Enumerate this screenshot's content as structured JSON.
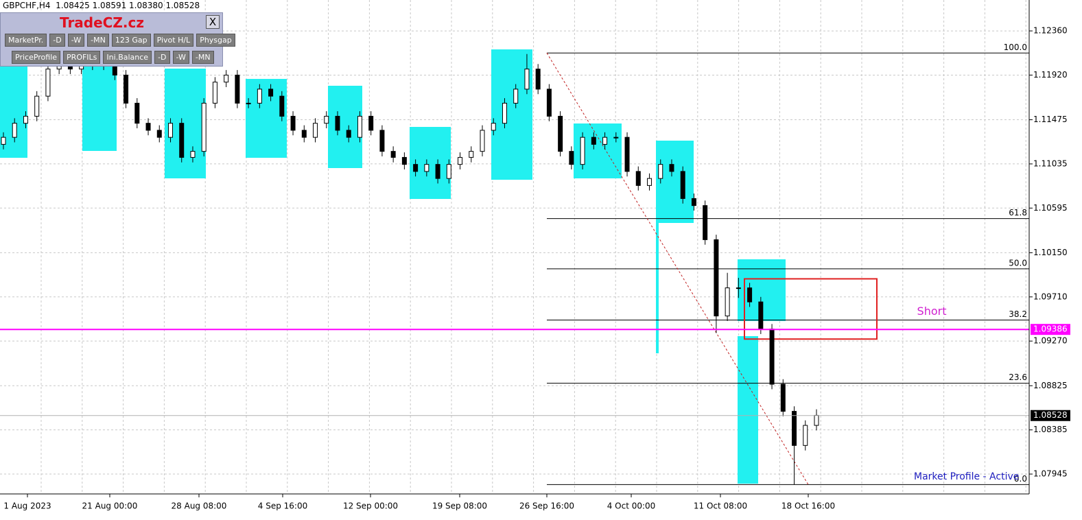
{
  "header": {
    "text": "GBPCHF,H4  1.08425 1.08591 1.08380 1.08528"
  },
  "panel": {
    "title": "TradeCZ.cz",
    "close": "X",
    "row1": [
      "MarketPr.",
      "-D",
      "-W",
      "-MN",
      "123 Gap",
      "Pivot H/L",
      "Physgap"
    ],
    "row2": [
      "PriceProfile",
      "PROFILs",
      "Ini.Balance",
      "-D",
      "-W",
      "-MN"
    ]
  },
  "status": "Market Profile - Active",
  "chart_data": {
    "type": "candlestick",
    "x_labels": [
      "1 Aug 2023",
      "21 Aug 00:00",
      "28 Aug 08:00",
      "4 Sep 16:00",
      "12 Sep 00:00",
      "19 Sep 08:00",
      "26 Sep 16:00",
      "4 Oct 00:00",
      "11 Oct 08:00",
      "18 Oct 16:00"
    ],
    "open": [
      1.1123,
      1.113,
      1.1144,
      1.1151,
      1.1171,
      1.1198,
      1.1202,
      1.1198,
      1.1205,
      1.1202,
      1.1205,
      1.1192,
      1.1164,
      1.1144,
      1.1137,
      1.113,
      1.1144,
      1.111,
      1.1116,
      1.1164,
      1.1185,
      1.1192,
      1.1164,
      1.1164,
      1.1178,
      1.1171,
      1.1151,
      1.1137,
      1.113,
      1.1144,
      1.1151,
      1.1137,
      1.113,
      1.1151,
      1.1137,
      1.1116,
      1.111,
      1.1103,
      1.1096,
      1.1103,
      1.1089,
      1.1103,
      1.111,
      1.1116,
      1.1137,
      1.1144,
      1.1164,
      1.1178,
      1.1198,
      1.1178,
      1.1151,
      1.1116,
      1.1103,
      1.113,
      1.1123,
      1.113,
      1.113,
      1.1096,
      1.1082,
      1.1089,
      1.1103,
      1.1096,
      1.1069,
      1.1062,
      1.1028,
      1.0952,
      1.098,
      1.098,
      1.0966,
      1.0939,
      1.0884,
      1.0857,
      1.0823,
      1.0843
    ],
    "high": [
      1.1135,
      1.1149,
      1.1156,
      1.1176,
      1.1203,
      1.1207,
      1.1207,
      1.121,
      1.121,
      1.121,
      1.121,
      1.1197,
      1.1169,
      1.1149,
      1.1142,
      1.1149,
      1.1149,
      1.1121,
      1.1169,
      1.119,
      1.1197,
      1.1197,
      1.1169,
      1.1183,
      1.1183,
      1.1176,
      1.1156,
      1.1142,
      1.1149,
      1.1156,
      1.1156,
      1.1142,
      1.1156,
      1.1156,
      1.1142,
      1.1121,
      1.1115,
      1.1108,
      1.1108,
      1.1108,
      1.1108,
      1.1115,
      1.1121,
      1.1142,
      1.1149,
      1.1169,
      1.1183,
      1.1213,
      1.1203,
      1.1183,
      1.1156,
      1.1121,
      1.1135,
      1.1135,
      1.1135,
      1.1135,
      1.1135,
      1.1101,
      1.1094,
      1.1108,
      1.1108,
      1.1101,
      1.1074,
      1.1067,
      1.1033,
      1.0995,
      1.099,
      1.0985,
      1.0971,
      1.0944,
      1.0889,
      1.0862,
      1.0848,
      1.0859
    ],
    "low": [
      1.1118,
      1.1125,
      1.1139,
      1.1146,
      1.1166,
      1.1193,
      1.1193,
      1.1193,
      1.1197,
      1.1197,
      1.1187,
      1.1159,
      1.1139,
      1.1132,
      1.1125,
      1.1125,
      1.1105,
      1.1105,
      1.1111,
      1.1159,
      1.118,
      1.1159,
      1.1159,
      1.1159,
      1.1166,
      1.1146,
      1.1132,
      1.1125,
      1.1125,
      1.1139,
      1.1132,
      1.1125,
      1.1125,
      1.1132,
      1.1111,
      1.1105,
      1.1098,
      1.1091,
      1.1091,
      1.1084,
      1.1084,
      1.1098,
      1.1105,
      1.1111,
      1.1132,
      1.1139,
      1.1159,
      1.1173,
      1.1173,
      1.1146,
      1.1111,
      1.1098,
      1.1098,
      1.1118,
      1.1118,
      1.1125,
      1.1091,
      1.1077,
      1.1077,
      1.1084,
      1.1091,
      1.1064,
      1.1057,
      1.1023,
      1.0935,
      1.0947,
      1.097,
      1.0961,
      1.0934,
      1.0879,
      1.0852,
      1.0784,
      1.0818,
      1.0838
    ],
    "close": [
      1.113,
      1.1144,
      1.1151,
      1.1171,
      1.1198,
      1.1202,
      1.1198,
      1.1205,
      1.1202,
      1.1205,
      1.1192,
      1.1164,
      1.1144,
      1.1137,
      1.113,
      1.1144,
      1.111,
      1.1116,
      1.1164,
      1.1185,
      1.1192,
      1.1164,
      1.1164,
      1.1178,
      1.1171,
      1.1151,
      1.1137,
      1.113,
      1.1144,
      1.1151,
      1.1137,
      1.113,
      1.1151,
      1.1137,
      1.1116,
      1.111,
      1.1103,
      1.1096,
      1.1103,
      1.1089,
      1.1103,
      1.111,
      1.1116,
      1.1137,
      1.1144,
      1.1164,
      1.1178,
      1.1198,
      1.1178,
      1.1151,
      1.1116,
      1.1103,
      1.113,
      1.1123,
      1.113,
      1.113,
      1.1096,
      1.1082,
      1.1089,
      1.1103,
      1.1096,
      1.1069,
      1.1062,
      1.1028,
      1.0952,
      1.098,
      1.098,
      1.0966,
      1.0939,
      1.0884,
      1.0857,
      1.0823,
      1.0843,
      1.0853
    ],
    "ylim": [
      1.07747,
      1.12668
    ],
    "yticks": [
      {
        "value": 1.1236,
        "label": "1.12360"
      },
      {
        "value": 1.1192,
        "label": "1.11920"
      },
      1.11475,
      1.11035,
      1.10595,
      {
        "value": 1.1015,
        "label": "1.10150"
      },
      {
        "value": 1.0971,
        "label": "1.09710"
      },
      {
        "value": 1.0927,
        "label": "1.09270"
      },
      1.08825,
      1.08385,
      1.07945
    ],
    "grid": true,
    "fib_levels": [
      {
        "label": "100.0",
        "price": 1.1214
      },
      {
        "label": "61.8",
        "price": 1.1049
      },
      {
        "label": "50.0",
        "price": 1.0999
      },
      {
        "label": "38.2",
        "price": 1.0948
      },
      {
        "label": "23.6",
        "price": 1.0885
      },
      {
        "label": "0.0",
        "price": 1.0784
      }
    ],
    "level_line": {
      "price": 1.09386,
      "color": "#ff00ff"
    },
    "current_price": 1.08528,
    "short_box": {
      "label": "Short",
      "top": 1.0989,
      "bottom": 1.0929,
      "color": "#e02020"
    }
  }
}
